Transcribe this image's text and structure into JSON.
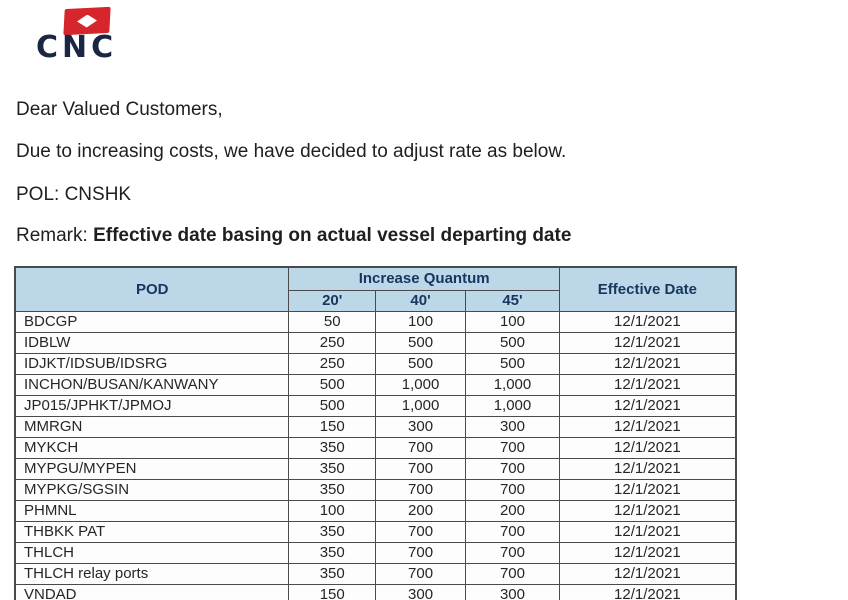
{
  "logo": {
    "brand": "CNC",
    "flag_icon": "red-flag-with-white-diamond"
  },
  "intro": {
    "greeting": "Dear Valued Customers,",
    "announcement": "Due to increasing costs, we have decided to adjust rate as below.",
    "pol": "POL: CNSHK",
    "remark_label": "Remark: ",
    "remark_text": "Effective date basing on actual vessel departing date"
  },
  "table": {
    "headers": {
      "pod": "POD",
      "increase_quantum": "Increase Quantum",
      "sizes": [
        "20'",
        "40'",
        "45'"
      ],
      "effective_date": "Effective Date"
    },
    "rows": [
      {
        "pod": "BDCGP",
        "q20": "50",
        "q40": "100",
        "q45": "100",
        "date": "12/1/2021"
      },
      {
        "pod": "IDBLW",
        "q20": "250",
        "q40": "500",
        "q45": "500",
        "date": "12/1/2021"
      },
      {
        "pod": "IDJKT/IDSUB/IDSRG",
        "q20": "250",
        "q40": "500",
        "q45": "500",
        "date": "12/1/2021"
      },
      {
        "pod": "INCHON/BUSAN/KANWANY",
        "q20": "500",
        "q40": "1,000",
        "q45": "1,000",
        "date": "12/1/2021"
      },
      {
        "pod": "JP015/JPHKT/JPMOJ",
        "q20": "500",
        "q40": "1,000",
        "q45": "1,000",
        "date": "12/1/2021"
      },
      {
        "pod": "MMRGN",
        "q20": "150",
        "q40": "300",
        "q45": "300",
        "date": "12/1/2021"
      },
      {
        "pod": "MYKCH",
        "q20": "350",
        "q40": "700",
        "q45": "700",
        "date": "12/1/2021"
      },
      {
        "pod": "MYPGU/MYPEN",
        "q20": "350",
        "q40": "700",
        "q45": "700",
        "date": "12/1/2021"
      },
      {
        "pod": "MYPKG/SGSIN",
        "q20": "350",
        "q40": "700",
        "q45": "700",
        "date": "12/1/2021"
      },
      {
        "pod": "PHMNL",
        "q20": "100",
        "q40": "200",
        "q45": "200",
        "date": "12/1/2021"
      },
      {
        "pod": "THBKK PAT",
        "q20": "350",
        "q40": "700",
        "q45": "700",
        "date": "12/1/2021"
      },
      {
        "pod": "THLCH",
        "q20": "350",
        "q40": "700",
        "q45": "700",
        "date": "12/1/2021"
      },
      {
        "pod": "THLCH relay ports",
        "q20": "350",
        "q40": "700",
        "q45": "700",
        "date": "12/1/2021"
      },
      {
        "pod": "VNDAD",
        "q20": "150",
        "q40": "300",
        "q45": "300",
        "date": "12/1/2021"
      }
    ]
  },
  "colors": {
    "header_bg": "#bcd8e8",
    "header_text": "#17365d",
    "border": "#4a4a4a",
    "body_text": "#1f1f1f",
    "logo_red": "#d6252b",
    "logo_navy": "#1b2742"
  }
}
